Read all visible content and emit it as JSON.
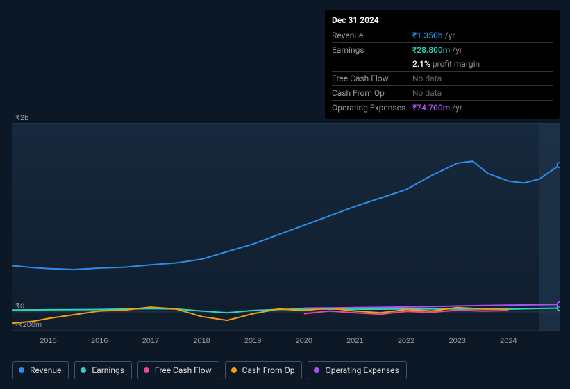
{
  "chart": {
    "type": "line",
    "background_color": "#0d1826",
    "plot_gradient_top": "#17293d",
    "plot_gradient_bottom": "#0f1d2d",
    "forecast_band_color": "#1d3147",
    "grid_color": "#2a3a4d",
    "axis_label_color": "#999999",
    "tooltip": {
      "date": "Dec 31 2024",
      "rows": [
        {
          "label": "Revenue",
          "value": "₹1.350b",
          "unit": "/yr",
          "color": "#2f8deb"
        },
        {
          "label": "Earnings",
          "value": "₹28.800m",
          "unit": "/yr",
          "color": "#2dd4bf"
        },
        {
          "label": "Free Cash Flow",
          "value": "",
          "nodata": "No data",
          "color": "#ec4899"
        },
        {
          "label": "Cash From Op",
          "value": "",
          "nodata": "No data",
          "color": "#f59e0b"
        },
        {
          "label": "Operating Expenses",
          "value": "₹74.700m",
          "unit": "/yr",
          "color": "#a855f7"
        }
      ],
      "secondary": {
        "value": "2.1%",
        "label": "profit margin"
      }
    },
    "y_axis": {
      "min": -200,
      "max": 2000,
      "labels": [
        {
          "v": 2000,
          "text": "₹2b"
        },
        {
          "v": 0,
          "text": "₹0"
        },
        {
          "v": -200,
          "text": "-₹200m"
        }
      ]
    },
    "x_axis": {
      "min": 2014.3,
      "max": 2025.0,
      "ticks": [
        2015,
        2016,
        2017,
        2018,
        2019,
        2020,
        2021,
        2022,
        2023,
        2024
      ]
    },
    "forecast_start": 2024.6,
    "series": [
      {
        "name": "Revenue",
        "color": "#2f8deb",
        "width": 2,
        "points": [
          [
            2014.3,
            490
          ],
          [
            2014.7,
            470
          ],
          [
            2015.0,
            460
          ],
          [
            2015.5,
            450
          ],
          [
            2016.0,
            465
          ],
          [
            2016.5,
            475
          ],
          [
            2017.0,
            500
          ],
          [
            2017.5,
            520
          ],
          [
            2018.0,
            560
          ],
          [
            2018.5,
            640
          ],
          [
            2019.0,
            720
          ],
          [
            2019.5,
            820
          ],
          [
            2020.0,
            920
          ],
          [
            2020.5,
            1020
          ],
          [
            2021.0,
            1120
          ],
          [
            2021.5,
            1210
          ],
          [
            2022.0,
            1300
          ],
          [
            2022.5,
            1450
          ],
          [
            2023.0,
            1580
          ],
          [
            2023.3,
            1600
          ],
          [
            2023.6,
            1470
          ],
          [
            2024.0,
            1390
          ],
          [
            2024.3,
            1370
          ],
          [
            2024.6,
            1410
          ],
          [
            2025.0,
            1560
          ]
        ]
      },
      {
        "name": "Earnings",
        "color": "#2dd4bf",
        "width": 2,
        "points": [
          [
            2014.3,
            20
          ],
          [
            2015.0,
            22
          ],
          [
            2016.0,
            25
          ],
          [
            2017.0,
            35
          ],
          [
            2017.5,
            30
          ],
          [
            2018.0,
            10
          ],
          [
            2018.5,
            -10
          ],
          [
            2019.0,
            15
          ],
          [
            2019.5,
            25
          ],
          [
            2020.0,
            30
          ],
          [
            2021.0,
            28
          ],
          [
            2022.0,
            30
          ],
          [
            2023.0,
            32
          ],
          [
            2024.0,
            29
          ],
          [
            2025.0,
            40
          ]
        ]
      },
      {
        "name": "Free Cash Flow",
        "color": "#ec4899",
        "width": 2,
        "points": [
          [
            2020.0,
            -20
          ],
          [
            2020.5,
            10
          ],
          [
            2021.0,
            -10
          ],
          [
            2021.5,
            -25
          ],
          [
            2022.0,
            5
          ],
          [
            2022.5,
            -5
          ],
          [
            2023.0,
            20
          ],
          [
            2023.5,
            10
          ],
          [
            2024.0,
            15
          ]
        ]
      },
      {
        "name": "Cash From Op",
        "color": "#f59e0b",
        "width": 2,
        "points": [
          [
            2014.3,
            -120
          ],
          [
            2014.7,
            -100
          ],
          [
            2015.0,
            -70
          ],
          [
            2015.5,
            -30
          ],
          [
            2016.0,
            10
          ],
          [
            2016.5,
            20
          ],
          [
            2017.0,
            50
          ],
          [
            2017.5,
            30
          ],
          [
            2018.0,
            -50
          ],
          [
            2018.5,
            -90
          ],
          [
            2019.0,
            -20
          ],
          [
            2019.5,
            30
          ],
          [
            2020.0,
            15
          ],
          [
            2020.5,
            40
          ],
          [
            2021.0,
            10
          ],
          [
            2021.5,
            -10
          ],
          [
            2022.0,
            25
          ],
          [
            2022.5,
            10
          ],
          [
            2023.0,
            45
          ],
          [
            2023.5,
            30
          ],
          [
            2024.0,
            35
          ]
        ]
      },
      {
        "name": "Operating Expenses",
        "color": "#a855f7",
        "width": 2,
        "points": [
          [
            2020.0,
            40
          ],
          [
            2020.5,
            42
          ],
          [
            2021.0,
            45
          ],
          [
            2021.5,
            48
          ],
          [
            2022.0,
            52
          ],
          [
            2022.5,
            56
          ],
          [
            2023.0,
            62
          ],
          [
            2023.5,
            68
          ],
          [
            2024.0,
            72
          ],
          [
            2024.5,
            75
          ],
          [
            2025.0,
            78
          ]
        ]
      }
    ],
    "legend": [
      {
        "label": "Revenue",
        "color": "#2f8deb"
      },
      {
        "label": "Earnings",
        "color": "#2dd4bf"
      },
      {
        "label": "Free Cash Flow",
        "color": "#ec4899"
      },
      {
        "label": "Cash From Op",
        "color": "#f59e0b"
      },
      {
        "label": "Operating Expenses",
        "color": "#a855f7"
      }
    ]
  }
}
